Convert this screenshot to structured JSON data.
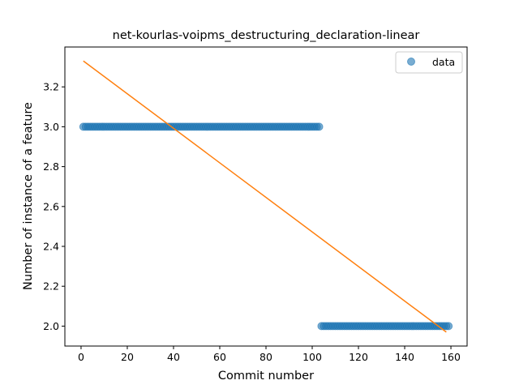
{
  "chart_data": {
    "type": "scatter",
    "title": "net-kourlas-voipms_destructuring_declaration-linear",
    "xlabel": "Commit number",
    "ylabel": "Number of instance of a feature",
    "xlim": [
      -7,
      167
    ],
    "ylim": [
      1.9,
      3.4
    ],
    "xticks": [
      0,
      20,
      40,
      60,
      80,
      100,
      120,
      140,
      160
    ],
    "yticks": [
      2.0,
      2.2,
      2.4,
      2.6,
      2.8,
      3.0,
      3.2
    ],
    "grid": false,
    "legend": {
      "entries": [
        "data"
      ],
      "placement": "top-right"
    },
    "series": [
      {
        "name": "data",
        "kind": "scatter",
        "segments": [
          {
            "x_start": 1,
            "x_end": 103,
            "y": 3.0
          },
          {
            "x_start": 104,
            "x_end": 159,
            "y": 2.0
          }
        ]
      },
      {
        "kind": "line",
        "points": [
          [
            1,
            3.33
          ],
          [
            158,
            1.97
          ]
        ]
      }
    ],
    "colors": {
      "data": "#1f77b4",
      "fit": "#ff7f0e"
    }
  }
}
